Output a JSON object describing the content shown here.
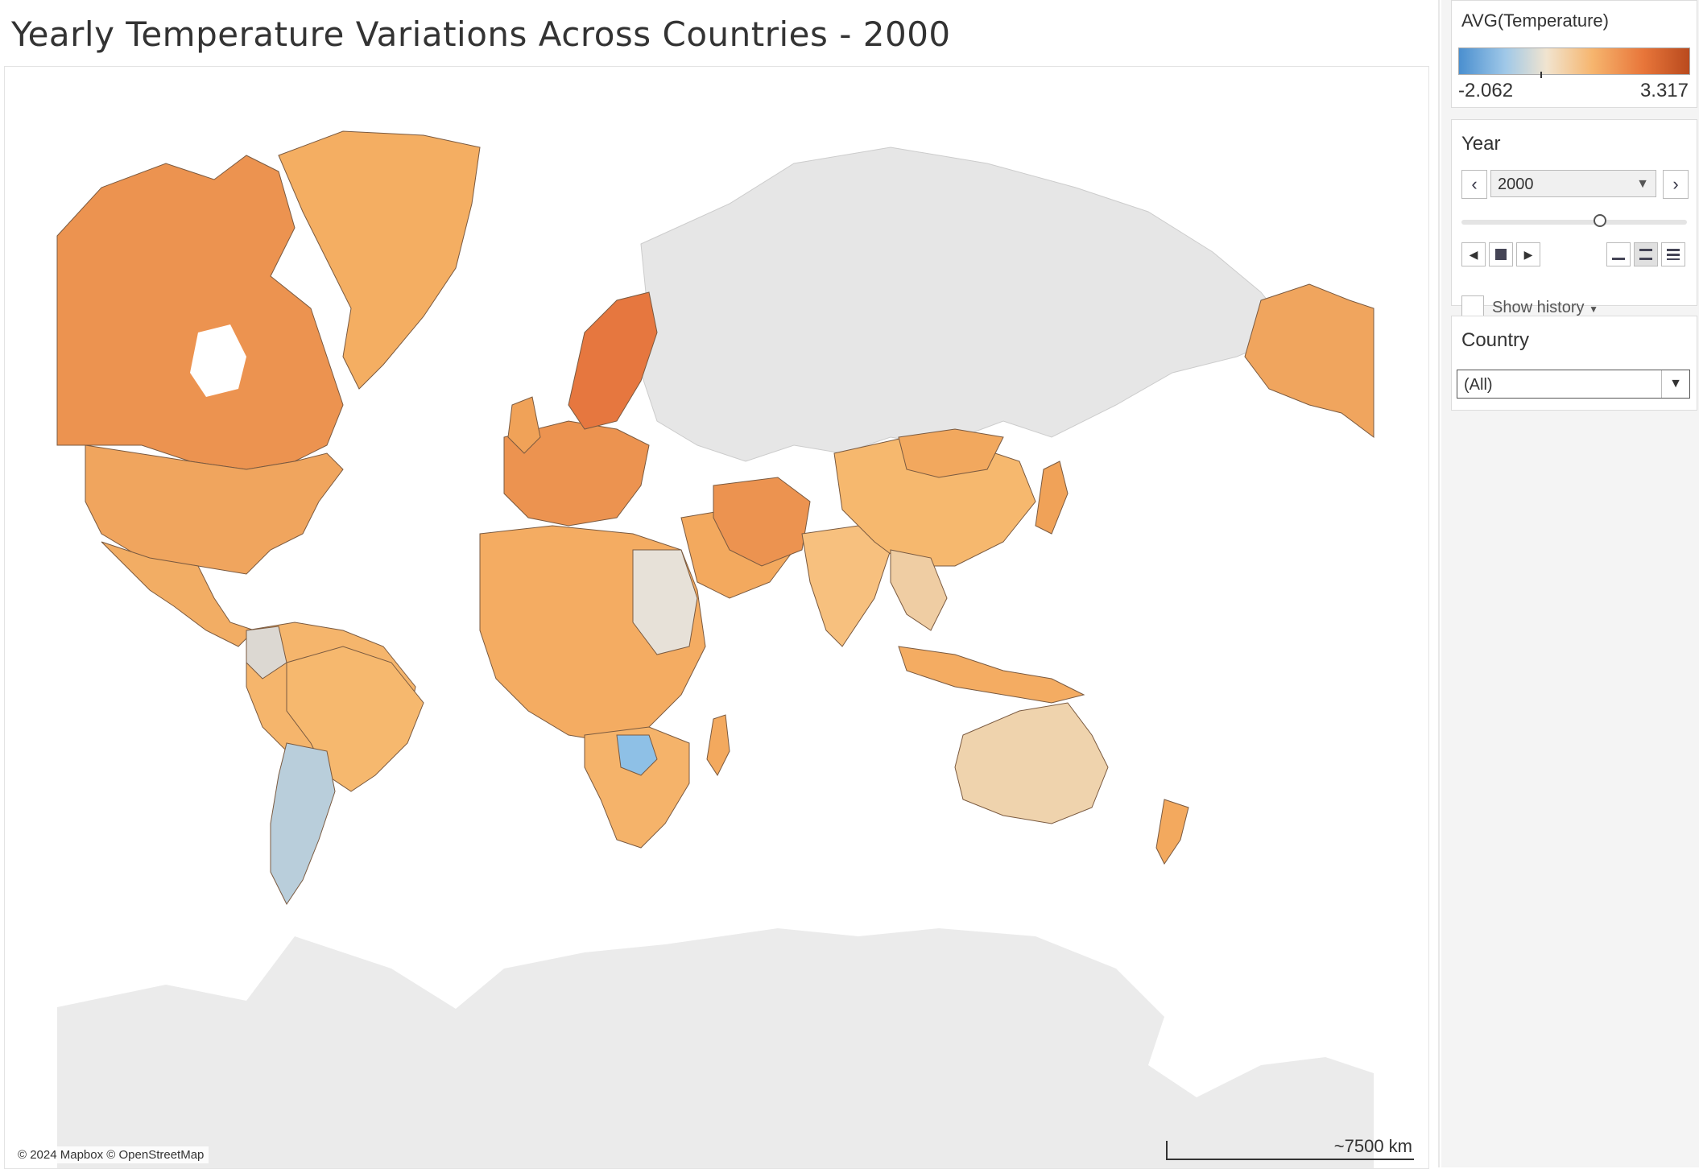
{
  "title": "Yearly Temperature Variations Across Countries - 2000",
  "legend": {
    "title": "AVG(Temperature)",
    "min": "-2.062",
    "max": "3.317",
    "colors": [
      "#4a8fcf",
      "#9fc8e8",
      "#f1e4cf",
      "#f6b56e",
      "#e8763a",
      "#b94a1e"
    ]
  },
  "year_filter": {
    "title": "Year",
    "value": "2000",
    "show_history_label": "Show history"
  },
  "country_filter": {
    "title": "Country",
    "value": "(All)"
  },
  "map": {
    "attribution": "© 2024 Mapbox © OpenStreetMap",
    "scale_label": "~7500 km"
  }
}
